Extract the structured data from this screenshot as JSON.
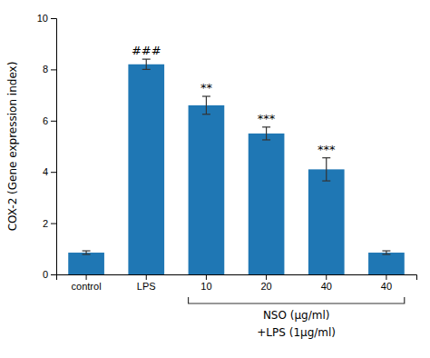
{
  "chart_data": {
    "type": "bar",
    "categories": [
      "control",
      "LPS",
      "10",
      "20",
      "40",
      "40"
    ],
    "values": [
      0.85,
      8.2,
      6.6,
      5.5,
      4.1,
      0.85
    ],
    "errors": [
      0.07,
      0.2,
      0.35,
      0.25,
      0.45,
      0.07
    ],
    "annotations": [
      null,
      "###",
      "**",
      "***",
      "***",
      null
    ],
    "ylabel": "COX-2 (Gene expression index)",
    "ylim": [
      0,
      10
    ],
    "yticks": [
      0,
      2,
      4,
      6,
      8,
      10
    ],
    "bracket_labels": [
      "NSO (μg/ml)",
      "+LPS (1μg/ml)"
    ]
  }
}
